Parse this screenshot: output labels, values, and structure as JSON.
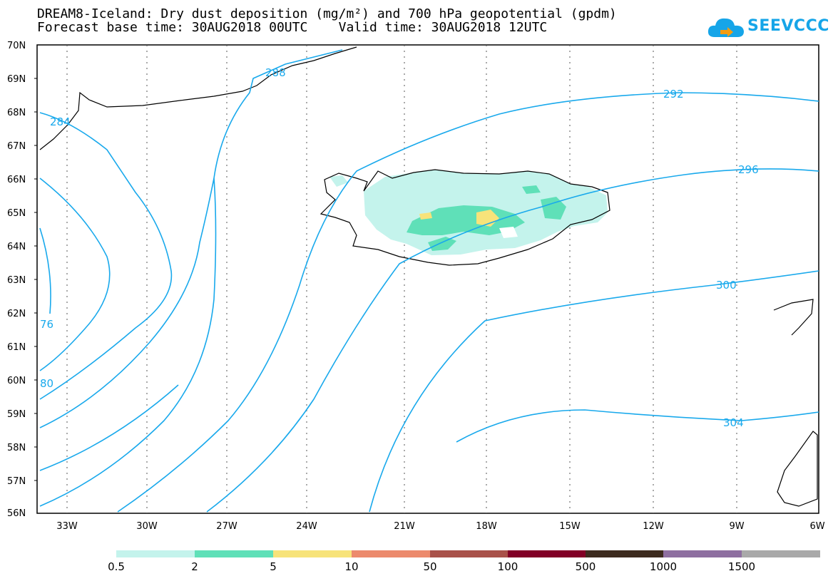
{
  "header": {
    "title_line1": "DREAM8-Iceland: Dry dust deposition (mg/m²) and 700 hPa geopotential (gpdm)",
    "title_line2": "Forecast base time: 30AUG2018 00UTC    Valid time: 30AUG2018 12UTC"
  },
  "logo": {
    "text": "SEEVCCC",
    "color": "#16a5e8"
  },
  "axes": {
    "lat_labels": [
      "70N",
      "69N",
      "68N",
      "67N",
      "66N",
      "65N",
      "64N",
      "63N",
      "62N",
      "61N",
      "60N",
      "59N",
      "58N",
      "57N",
      "56N"
    ],
    "lon_labels": [
      "33W",
      "30W",
      "27W",
      "24W",
      "21W",
      "18W",
      "15W",
      "12W",
      "9W",
      "6W"
    ],
    "lat_range": [
      56,
      70
    ],
    "lon_range": [
      -35,
      -6
    ]
  },
  "contours": {
    "color": "#19a9ec",
    "labels": [
      "288",
      "284",
      "292",
      "296",
      "300",
      "304",
      "76",
      "80"
    ]
  },
  "legend": {
    "colors": [
      "#c4f3ec",
      "#5fe0b8",
      "#f7e37a",
      "#ec8a6c",
      "#a9524a",
      "#820026",
      "#3d2b1f",
      "#8e6fa0",
      "#a9a9a9"
    ],
    "labels": [
      "0.5",
      "2",
      "5",
      "10",
      "50",
      "100",
      "500",
      "1000",
      "1500"
    ]
  }
}
